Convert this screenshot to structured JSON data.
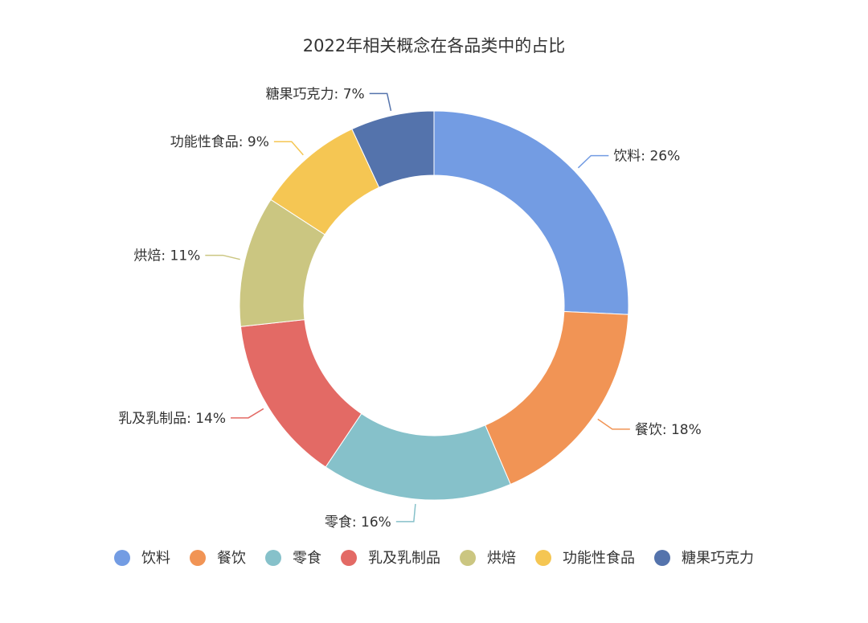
{
  "chart_data": {
    "type": "pie",
    "title": "2022年相关概念在各品类中的占比",
    "slices": [
      {
        "name": "饮料",
        "value": 26,
        "label": "饮料: 26%",
        "color": "#739ce3"
      },
      {
        "name": "餐饮",
        "value": 18,
        "label": "餐饮: 18%",
        "color": "#f19455"
      },
      {
        "name": "零食",
        "value": 16,
        "label": "零食: 16%",
        "color": "#86c1ca"
      },
      {
        "name": "乳及乳制品",
        "value": 14,
        "label": "乳及乳制品: 14%",
        "color": "#e36a65"
      },
      {
        "name": "烘焙",
        "value": 11,
        "label": "烘焙: 11%",
        "color": "#cbc681"
      },
      {
        "name": "功能性食品",
        "value": 9,
        "label": "功能性食品: 9%",
        "color": "#f5c653"
      },
      {
        "name": "糖果巧克力",
        "value": 7,
        "label": "糖果巧克力: 7%",
        "color": "#5473ac"
      }
    ],
    "legend": {
      "position": "bottom",
      "items": [
        "饮料",
        "餐饮",
        "零食",
        "乳及乳制品",
        "烘焙",
        "功能性食品",
        "糖果巧克力"
      ]
    }
  }
}
